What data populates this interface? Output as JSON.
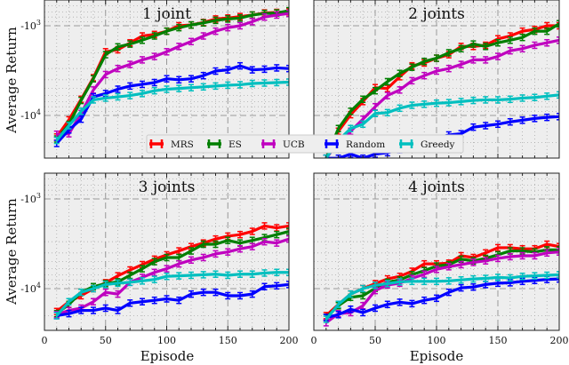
{
  "figure": {
    "ylabel": "Average Return",
    "xlabel": "Episode",
    "legend": [
      {
        "name": "MRS",
        "color": "#ff0000"
      },
      {
        "name": "ES",
        "color": "#007f00"
      },
      {
        "name": "UCB",
        "color": "#bf00bf"
      },
      {
        "name": "Random",
        "color": "#0000ff"
      },
      {
        "name": "Greedy",
        "color": "#00bfbf"
      }
    ]
  },
  "chart_data": [
    {
      "type": "line",
      "title": "1 joint",
      "xlabel": "",
      "ylabel": "Average Return",
      "yscale": "symlog-negative (log of magnitude)",
      "xlim": [
        0,
        200
      ],
      "ylim": [
        -31000,
        -500
      ],
      "xticks": [
        0,
        50,
        100,
        150,
        200
      ],
      "yticks": [
        "-10^3",
        "-10^4"
      ],
      "grid": true,
      "x": [
        10,
        20,
        30,
        40,
        50,
        60,
        70,
        80,
        90,
        100,
        110,
        120,
        130,
        140,
        150,
        160,
        170,
        180,
        190,
        200
      ],
      "series": [
        {
          "name": "MRS",
          "values": [
            -17400,
            -11200,
            -6600,
            -3800,
            -1950,
            -1850,
            -1550,
            -1300,
            -1250,
            -1150,
            -1000,
            -980,
            -920,
            -840,
            -820,
            -790,
            -760,
            -720,
            -710,
            -700
          ]
        },
        {
          "name": "ES",
          "values": [
            -18300,
            -12600,
            -6800,
            -3900,
            -2100,
            -1720,
            -1600,
            -1450,
            -1300,
            -1150,
            -1050,
            -980,
            -930,
            -870,
            -840,
            -820,
            -760,
            -730,
            -720,
            -680
          ]
        },
        {
          "name": "UCB",
          "values": [
            -16200,
            -16000,
            -9500,
            -5200,
            -3500,
            -3000,
            -2700,
            -2400,
            -2200,
            -1950,
            -1700,
            -1500,
            -1300,
            -1150,
            -1050,
            -1000,
            -900,
            -800,
            -760,
            -730
          ]
        },
        {
          "name": "Random",
          "values": [
            -20500,
            -14500,
            -11000,
            -6200,
            -5700,
            -5100,
            -4700,
            -4500,
            -4300,
            -3900,
            -4000,
            -3900,
            -3600,
            -3200,
            -3100,
            -2800,
            -3100,
            -3050,
            -2950,
            -3000
          ]
        },
        {
          "name": "Greedy",
          "values": [
            -19000,
            -13000,
            -9000,
            -6700,
            -6400,
            -6200,
            -6000,
            -5700,
            -5300,
            -5100,
            -5000,
            -4900,
            -4800,
            -4700,
            -4600,
            -4550,
            -4400,
            -4350,
            -4300,
            -4250
          ]
        }
      ]
    },
    {
      "type": "line",
      "title": "2 joints",
      "xlabel": "",
      "ylabel": "",
      "xlim": [
        0,
        200
      ],
      "ylim": [
        -31000,
        -500
      ],
      "xticks": [
        0,
        50,
        100,
        150,
        200
      ],
      "yticks": [
        "-10^3",
        "-10^4"
      ],
      "grid": true,
      "x": [
        10,
        20,
        30,
        40,
        50,
        60,
        70,
        80,
        90,
        100,
        110,
        120,
        130,
        140,
        150,
        160,
        170,
        180,
        190,
        200
      ],
      "series": [
        {
          "name": "MRS",
          "values": [
            -30000,
            -15000,
            -9800,
            -7000,
            -4900,
            -5000,
            -3700,
            -2800,
            -2600,
            -2300,
            -2100,
            -1700,
            -1700,
            -1650,
            -1400,
            -1300,
            -1150,
            -1100,
            -1000,
            -1000
          ]
        },
        {
          "name": "ES",
          "values": [
            -30000,
            -14000,
            -9000,
            -6600,
            -5300,
            -4200,
            -3400,
            -2900,
            -2500,
            -2300,
            -2000,
            -1800,
            -1600,
            -1700,
            -1550,
            -1450,
            -1350,
            -1150,
            -1150,
            -950
          ]
        },
        {
          "name": "UCB",
          "values": [
            -30000,
            -20000,
            -15000,
            -11000,
            -8000,
            -6000,
            -5200,
            -4100,
            -3600,
            -3200,
            -3000,
            -2700,
            -2400,
            -2400,
            -2200,
            -1900,
            -1800,
            -1650,
            -1550,
            -1450
          ]
        },
        {
          "name": "Random",
          "values": [
            -30000,
            -30000,
            -27000,
            -30000,
            -27000,
            -26000,
            -24000,
            -22000,
            -20000,
            -18000,
            -16500,
            -16000,
            -13500,
            -13000,
            -12500,
            -11800,
            -11300,
            -10800,
            -10500,
            -10300
          ]
        },
        {
          "name": "Greedy",
          "values": [
            -30000,
            -19000,
            -14000,
            -12500,
            -9500,
            -9300,
            -8300,
            -7700,
            -7500,
            -7300,
            -7200,
            -7000,
            -6800,
            -6700,
            -6700,
            -6600,
            -6400,
            -6300,
            -6100,
            -5900
          ]
        }
      ]
    },
    {
      "type": "line",
      "title": "3 joints",
      "xlabel": "Episode",
      "ylabel": "Average Return",
      "xlim": [
        0,
        200
      ],
      "ylim": [
        -31000,
        -500
      ],
      "xticks": [
        0,
        50,
        100,
        150,
        200
      ],
      "yticks": [
        "-10^3",
        "-10^4"
      ],
      "grid": true,
      "x": [
        10,
        20,
        30,
        40,
        50,
        60,
        70,
        80,
        90,
        100,
        110,
        120,
        130,
        140,
        150,
        160,
        170,
        180,
        190,
        200
      ],
      "series": [
        {
          "name": "MRS",
          "values": [
            -18000,
            -14000,
            -12000,
            -10000,
            -8600,
            -7200,
            -6200,
            -5400,
            -4700,
            -4200,
            -3800,
            -3400,
            -3100,
            -2800,
            -2600,
            -2500,
            -2300,
            -2000,
            -2100,
            -2000
          ]
        },
        {
          "name": "ES",
          "values": [
            -19000,
            -15000,
            -11000,
            -9500,
            -8800,
            -8400,
            -7100,
            -6000,
            -5000,
            -4500,
            -4500,
            -3800,
            -3200,
            -3200,
            -2900,
            -3100,
            -2900,
            -2700,
            -2500,
            -2300
          ]
        },
        {
          "name": "UCB",
          "values": [
            -19500,
            -17500,
            -16500,
            -14000,
            -11000,
            -11500,
            -8500,
            -7500,
            -6600,
            -6000,
            -5300,
            -4800,
            -4500,
            -4100,
            -3900,
            -3600,
            -3400,
            -3000,
            -3100,
            -2800
          ]
        },
        {
          "name": "Random",
          "values": [
            -20000,
            -19000,
            -17500,
            -17500,
            -16500,
            -17500,
            -14500,
            -14000,
            -13500,
            -13000,
            -13500,
            -11500,
            -11000,
            -11000,
            -12000,
            -12000,
            -11500,
            -9500,
            -9300,
            -9000
          ]
        },
        {
          "name": "Greedy",
          "values": [
            -20000,
            -14000,
            -11000,
            -10000,
            -9000,
            -8700,
            -8500,
            -8200,
            -7900,
            -7300,
            -7200,
            -7100,
            -7000,
            -6900,
            -7100,
            -6900,
            -6900,
            -6700,
            -6600,
            -6600
          ]
        }
      ]
    },
    {
      "type": "line",
      "title": "4 joints",
      "xlabel": "Episode",
      "ylabel": "",
      "xlim": [
        0,
        200
      ],
      "ylim": [
        -31000,
        -500
      ],
      "xticks": [
        0,
        50,
        100,
        150,
        200
      ],
      "yticks": [
        "-10^3",
        "-10^4"
      ],
      "grid": true,
      "x": [
        10,
        20,
        30,
        40,
        50,
        60,
        70,
        80,
        90,
        100,
        110,
        120,
        130,
        140,
        150,
        160,
        170,
        180,
        190,
        200
      ],
      "series": [
        {
          "name": "MRS",
          "values": [
            -20000,
            -15000,
            -11500,
            -10000,
            -8800,
            -7800,
            -7300,
            -6400,
            -5300,
            -5300,
            -5200,
            -4300,
            -4500,
            -4000,
            -3500,
            -3500,
            -3600,
            -3600,
            -3200,
            -3400
          ]
        },
        {
          "name": "ES",
          "values": [
            -21000,
            -15500,
            -12500,
            -12000,
            -9900,
            -8500,
            -8000,
            -7000,
            -6300,
            -5600,
            -5400,
            -4700,
            -4900,
            -4600,
            -4200,
            -3800,
            -3800,
            -3900,
            -3700,
            -3700
          ]
        },
        {
          "name": "UCB",
          "values": [
            -24000,
            -19000,
            -18500,
            -15500,
            -10500,
            -9100,
            -8700,
            -7700,
            -6900,
            -6100,
            -5700,
            -5400,
            -5100,
            -4900,
            -4600,
            -4400,
            -4300,
            -4300,
            -4000,
            -3900
          ]
        },
        {
          "name": "Random",
          "values": [
            -21000,
            -19500,
            -17000,
            -18500,
            -16500,
            -15000,
            -14200,
            -14700,
            -13500,
            -12800,
            -11000,
            -9800,
            -9600,
            -9000,
            -8700,
            -8600,
            -8300,
            -8100,
            -7900,
            -7800
          ]
        },
        {
          "name": "Greedy",
          "values": [
            -22000,
            -15000,
            -11500,
            -10000,
            -9200,
            -8800,
            -8400,
            -8300,
            -8300,
            -8300,
            -8200,
            -8000,
            -7800,
            -7700,
            -7500,
            -7600,
            -7300,
            -7200,
            -7100,
            -7000
          ]
        }
      ]
    }
  ]
}
